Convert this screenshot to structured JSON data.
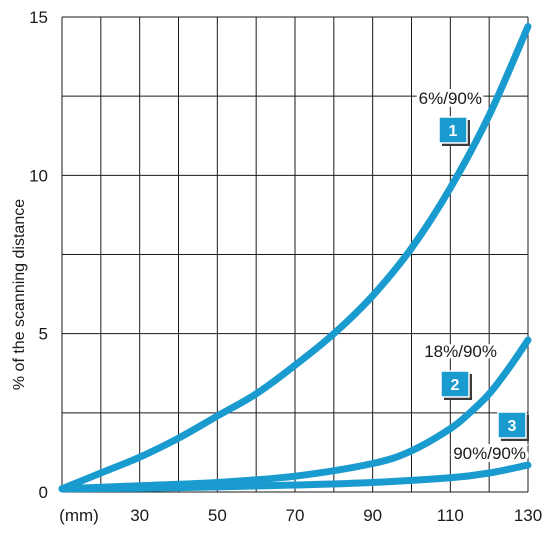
{
  "chart_data": {
    "type": "line",
    "ylabel": "% of the scanning distance",
    "x_unit_label": "(mm)",
    "xlim": [
      10,
      130
    ],
    "ylim": [
      0,
      15
    ],
    "x_ticks": [
      30,
      50,
      70,
      90,
      110,
      130
    ],
    "y_ticks": [
      0,
      5,
      10,
      15
    ],
    "grid": true,
    "line_color": "#1A9BCF",
    "series": [
      {
        "name": "6%/90%",
        "badge": "1",
        "x": [
          10,
          20,
          30,
          40,
          50,
          60,
          70,
          80,
          90,
          100,
          110,
          120,
          130
        ],
        "y": [
          0.1,
          0.6,
          1.1,
          1.7,
          2.4,
          3.1,
          4.0,
          5.0,
          6.2,
          7.7,
          9.6,
          11.9,
          14.7
        ]
      },
      {
        "name": "18%/90%",
        "badge": "2",
        "x": [
          10,
          30,
          50,
          70,
          90,
          100,
          110,
          115,
          120,
          125,
          130
        ],
        "y": [
          0.1,
          0.2,
          0.3,
          0.5,
          0.9,
          1.3,
          2.0,
          2.5,
          3.1,
          3.9,
          4.8
        ]
      },
      {
        "name": "90%/90%",
        "badge": "3",
        "x": [
          10,
          30,
          50,
          70,
          90,
          110,
          120,
          130
        ],
        "y": [
          0.1,
          0.12,
          0.16,
          0.22,
          0.3,
          0.45,
          0.6,
          0.85
        ]
      }
    ]
  }
}
